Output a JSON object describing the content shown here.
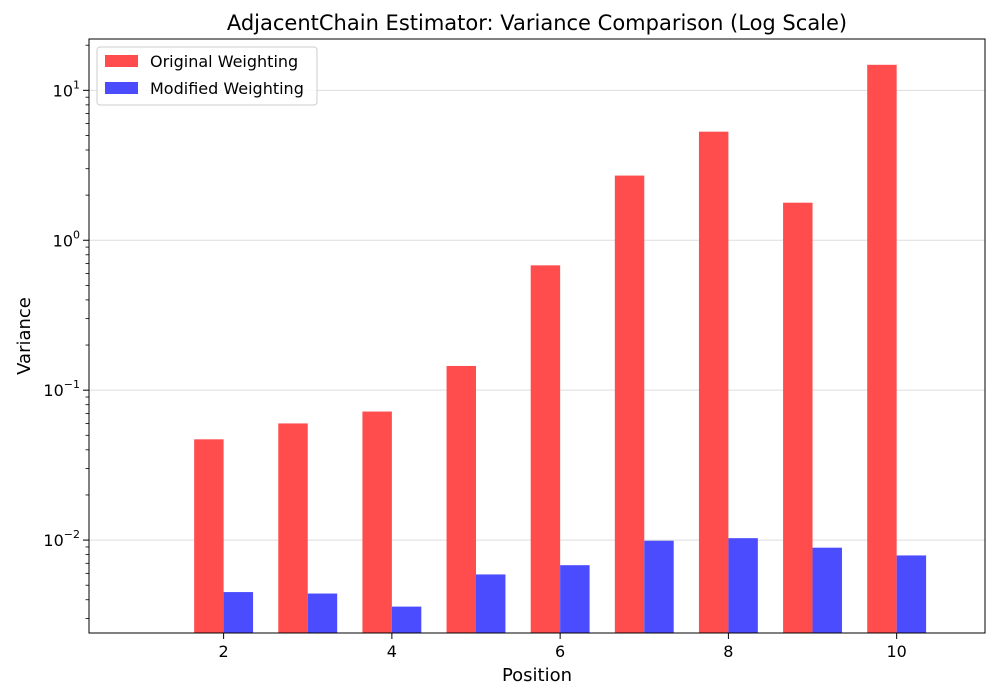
{
  "chart_data": {
    "type": "bar",
    "title": "AdjacentChain Estimator: Variance Comparison (Log Scale)",
    "xlabel": "Position",
    "ylabel": "Variance",
    "yscale": "log",
    "ylim": [
      0.0024,
      22
    ],
    "xlim": [
      0.4,
      11.05
    ],
    "xticks": [
      2,
      4,
      6,
      8,
      10
    ],
    "yticks": [
      {
        "value": 0.01,
        "base": "10",
        "exp": "−2"
      },
      {
        "value": 0.1,
        "base": "10",
        "exp": "−1"
      },
      {
        "value": 1,
        "base": "10",
        "exp": "0"
      },
      {
        "value": 10,
        "base": "10",
        "exp": "1"
      }
    ],
    "grid": "y",
    "legend": {
      "position": "top-left"
    },
    "x": [
      2,
      3,
      4,
      5,
      6,
      7,
      8,
      9,
      10
    ],
    "series": [
      {
        "name": "Original Weighting",
        "color": "#ff4c4c",
        "values": [
          0.047,
          0.06,
          0.072,
          0.145,
          0.68,
          2.7,
          5.3,
          1.78,
          14.8
        ]
      },
      {
        "name": "Modified Weighting",
        "color": "#4c4cff",
        "values": [
          0.0045,
          0.0044,
          0.0036,
          0.0059,
          0.0068,
          0.0099,
          0.0103,
          0.0089,
          0.0079
        ]
      }
    ]
  }
}
